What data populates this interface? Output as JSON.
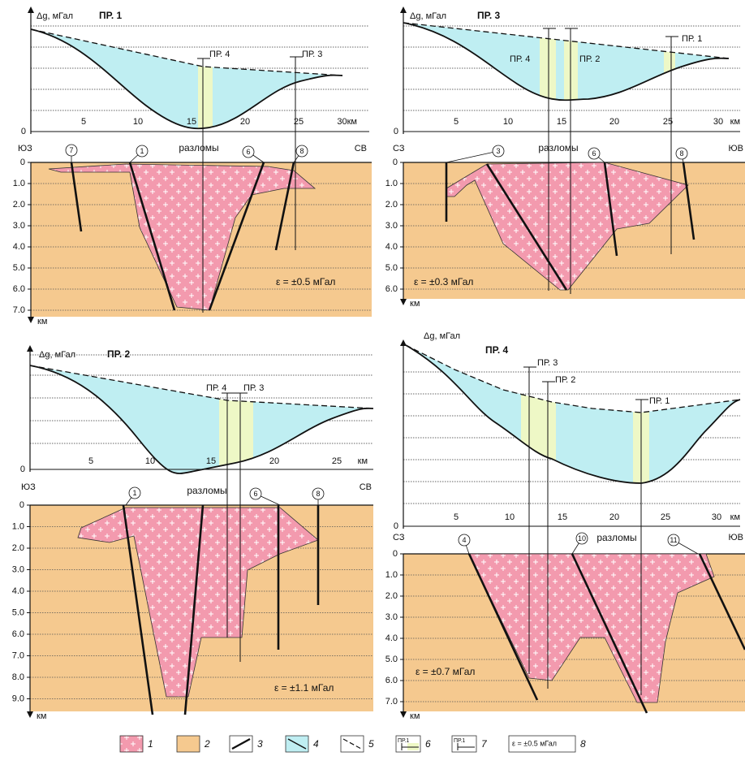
{
  "panels": [
    {
      "title": "ПР. 1",
      "axis_label": "Δg, мГал",
      "zero": "0",
      "x_labels": [
        "5",
        "10",
        "15",
        "20",
        "25",
        "30км"
      ],
      "left_dir": "ЮЗ",
      "right_dir": "СВ",
      "faults_label": "разломы",
      "faults": [
        "7",
        "1",
        "6",
        "8"
      ],
      "depth_labels": [
        "0",
        "1.0",
        "2.0",
        "3.0",
        "4.0",
        "5.0",
        "6.0",
        "7.0"
      ],
      "depth_unit": "км",
      "profiles": [
        "ПР. 4",
        "ПР. 3"
      ],
      "error": "ε = ±0.5 мГал"
    },
    {
      "title": "ПР. 3",
      "axis_label": "Δg, мГал",
      "zero": "0",
      "x_labels": [
        "5",
        "10",
        "15",
        "20",
        "25",
        "30",
        "км"
      ],
      "left_dir": "СЗ",
      "right_dir": "ЮВ",
      "faults_label": "разломы",
      "faults": [
        "3",
        "6",
        "8"
      ],
      "depth_labels": [
        "0",
        "1.0",
        "2.0",
        "3.0",
        "4.0",
        "5.0",
        "6.0"
      ],
      "depth_unit": "км",
      "profiles": [
        "ПР. 4",
        "ПР. 2",
        "ПР. 1"
      ],
      "error": "ε = ±0.3 мГал"
    },
    {
      "title": "ПР. 2",
      "axis_label": "Δg, мГал",
      "zero": "0",
      "x_labels": [
        "5",
        "10",
        "15",
        "20",
        "25",
        "км"
      ],
      "left_dir": "ЮЗ",
      "right_dir": "СВ",
      "faults_label": "разломы",
      "faults": [
        "1",
        "6",
        "8"
      ],
      "depth_labels": [
        "0",
        "1.0",
        "2.0",
        "3.0",
        "4.0",
        "5.0",
        "6.0",
        "7.0",
        "8.0",
        "9.0"
      ],
      "depth_unit": "км",
      "profiles": [
        "ПР. 4",
        "ПР. 3"
      ],
      "error": "ε = ±1.1 мГал"
    },
    {
      "title": "ПР. 4",
      "axis_label": "Δg, мГал",
      "zero": "0",
      "x_labels": [
        "5",
        "10",
        "15",
        "20",
        "25",
        "30",
        "км"
      ],
      "left_dir": "СЗ",
      "right_dir": "ЮВ",
      "faults_label": "разломы",
      "faults": [
        "4",
        "10",
        "11"
      ],
      "depth_labels": [
        "0",
        "1.0",
        "2.0",
        "3.0",
        "4.0",
        "5.0",
        "6.0",
        "7.0"
      ],
      "depth_unit": "км",
      "profiles": [
        "ПР. 3",
        "ПР. 2",
        "ПР. 1"
      ],
      "error": "ε = ±0.7 мГал"
    }
  ],
  "legend": [
    {
      "label": "1"
    },
    {
      "label": "2"
    },
    {
      "label": "3"
    },
    {
      "label": "4"
    },
    {
      "label": "5"
    },
    {
      "label": "6",
      "sample": "ПР.1"
    },
    {
      "label": "7",
      "sample": "ПР.1"
    },
    {
      "label": "8",
      "sample": "ε = ±0.5 мГал"
    }
  ]
}
